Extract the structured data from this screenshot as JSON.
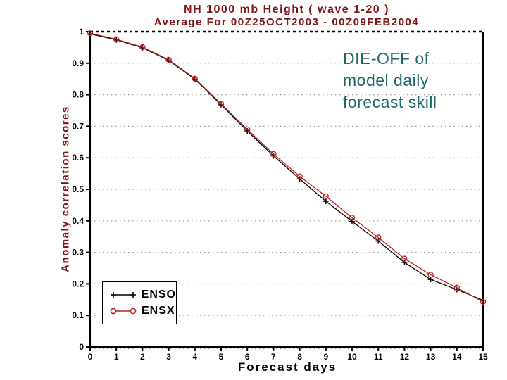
{
  "annotation": {
    "text": "DIE-OFF of model daily forecast skill",
    "lines": [
      "DIE-OFF of",
      "model daily",
      "forecast skill"
    ],
    "color": "#1e6868"
  },
  "colors": {
    "background": "#ffffff",
    "title": "#801518",
    "ylabel": "#801518",
    "axis": "#000000",
    "grid": "#999999",
    "enso": "#000000",
    "ensx": "#bb2222",
    "annotation": "#1e6868"
  },
  "chart_data": {
    "type": "line",
    "title": "NH 1000 mb Height ( wave 1-20 )",
    "subtitle": "Average For 00Z25OCT2003 - 00Z09FEB2004",
    "xlabel": "Forecast days",
    "ylabel": "Anomaly correlation scores",
    "xlim": [
      0,
      15
    ],
    "ylim": [
      0,
      1
    ],
    "x_ticks": [
      0,
      1,
      2,
      3,
      4,
      5,
      6,
      7,
      8,
      9,
      10,
      11,
      12,
      13,
      14,
      15
    ],
    "y_ticks": [
      0,
      0.1,
      0.2,
      0.3,
      0.4,
      0.5,
      0.6,
      0.7,
      0.8,
      0.9,
      1
    ],
    "grid": "horizontal-dotted",
    "legend_position": "lower-left",
    "x": [
      0,
      1,
      2,
      3,
      4,
      5,
      6,
      7,
      8,
      9,
      10,
      11,
      12,
      13,
      14,
      15
    ],
    "series": [
      {
        "name": "ENSO",
        "color": "#000000",
        "marker": "plus",
        "values": [
          0.993,
          0.974,
          0.949,
          0.909,
          0.849,
          0.768,
          0.685,
          0.606,
          0.533,
          0.462,
          0.398,
          0.336,
          0.268,
          0.214,
          0.182,
          0.148
        ]
      },
      {
        "name": "ENSX",
        "color": "#bb2222",
        "marker": "circle",
        "values": [
          0.995,
          0.976,
          0.951,
          0.911,
          0.851,
          0.771,
          0.69,
          0.612,
          0.541,
          0.478,
          0.41,
          0.347,
          0.28,
          0.229,
          0.188,
          0.143
        ]
      }
    ]
  }
}
